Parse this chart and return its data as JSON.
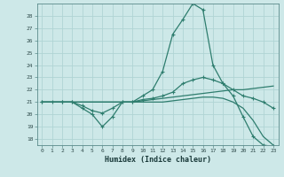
{
  "xlabel": "Humidex (Indice chaleur)",
  "ylabel": "",
  "background_color": "#cde8e8",
  "grid_color": "#b0d4d4",
  "line_color": "#2e7d6e",
  "xlim": [
    -0.5,
    23.5
  ],
  "ylim": [
    17.5,
    29.0
  ],
  "yticks": [
    18,
    19,
    20,
    21,
    22,
    23,
    24,
    25,
    26,
    27,
    28
  ],
  "xticks": [
    0,
    1,
    2,
    3,
    4,
    5,
    6,
    7,
    8,
    9,
    10,
    11,
    12,
    13,
    14,
    15,
    16,
    17,
    18,
    19,
    20,
    21,
    22,
    23
  ],
  "curve1_x": [
    0,
    1,
    2,
    3,
    4,
    5,
    6,
    7,
    8,
    9,
    10,
    11,
    12,
    13,
    14,
    15,
    16,
    17,
    18,
    19,
    20,
    21,
    22,
    23
  ],
  "curve1_y": [
    21.0,
    21.0,
    21.0,
    21.0,
    20.5,
    20.0,
    19.0,
    19.8,
    21.0,
    21.0,
    21.5,
    22.0,
    23.5,
    26.5,
    27.7,
    29.0,
    28.5,
    24.0,
    22.5,
    21.5,
    19.8,
    18.2,
    17.5,
    17.4
  ],
  "curve2_x": [
    0,
    2,
    3,
    4,
    5,
    6,
    7,
    8,
    9,
    10,
    11,
    12,
    13,
    14,
    15,
    16,
    17,
    18,
    19,
    20,
    21,
    22,
    23
  ],
  "curve2_y": [
    21.0,
    21.0,
    21.0,
    20.7,
    20.3,
    20.1,
    20.5,
    21.0,
    21.0,
    21.2,
    21.3,
    21.5,
    21.8,
    22.5,
    22.8,
    23.0,
    22.8,
    22.5,
    22.0,
    21.5,
    21.3,
    21.0,
    20.5
  ],
  "curve3_x": [
    0,
    1,
    2,
    3,
    4,
    5,
    6,
    7,
    8,
    9,
    10,
    11,
    12,
    13,
    14,
    15,
    16,
    17,
    18,
    19,
    20,
    21,
    22,
    23
  ],
  "curve3_y": [
    21.0,
    21.0,
    21.0,
    21.0,
    21.0,
    21.0,
    21.0,
    21.0,
    21.0,
    21.0,
    21.1,
    21.2,
    21.3,
    21.4,
    21.5,
    21.6,
    21.7,
    21.8,
    21.9,
    22.0,
    22.0,
    22.1,
    22.2,
    22.3
  ],
  "curve4_x": [
    0,
    1,
    2,
    3,
    4,
    5,
    6,
    7,
    8,
    9,
    10,
    11,
    12,
    13,
    14,
    15,
    16,
    17,
    18,
    19,
    20,
    21,
    22,
    23
  ],
  "curve4_y": [
    21.0,
    21.0,
    21.0,
    21.0,
    21.0,
    21.0,
    21.0,
    21.0,
    21.0,
    21.0,
    21.0,
    21.0,
    21.0,
    21.1,
    21.2,
    21.3,
    21.4,
    21.4,
    21.3,
    21.0,
    20.5,
    19.5,
    18.2,
    17.5
  ]
}
